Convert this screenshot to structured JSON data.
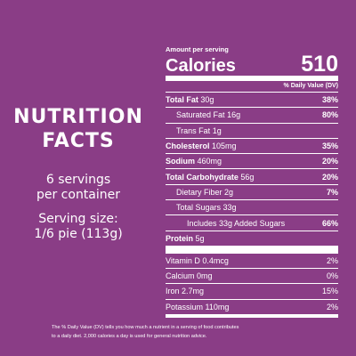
{
  "left": {
    "heading_line1": "NUTRITION",
    "heading_line2": "FACTS",
    "servings_line1": "6 servings",
    "servings_line2": "per container",
    "serving_size_line1": "Serving size:",
    "serving_size_line2": "1/6 pie (113g)"
  },
  "panel": {
    "amount_per_serving": "Amount per serving",
    "calories_label": "Calories",
    "calories_value": "510",
    "dv_header": "% Daily Value (DV)",
    "rows": [
      {
        "name": "Total Fat",
        "amount": "30g",
        "pct": "38%"
      },
      {
        "name": "Saturated Fat",
        "amount": "16g",
        "pct": "80%"
      },
      {
        "name": "Trans Fat",
        "amount": "1g",
        "pct": ""
      },
      {
        "name": "Cholesterol",
        "amount": "105mg",
        "pct": "35%"
      },
      {
        "name": "Sodium",
        "amount": "460mg",
        "pct": "20%"
      },
      {
        "name": "Total Carbohydrate",
        "amount": "56g",
        "pct": "20%"
      },
      {
        "name": "Dietary Fiber",
        "amount": "2g",
        "pct": "7%"
      },
      {
        "name": "Total Sugars",
        "amount": "33g",
        "pct": ""
      },
      {
        "name": "Includes 33g Added Sugars",
        "amount": "",
        "pct": "66%"
      },
      {
        "name": "Protein",
        "amount": "5g",
        "pct": ""
      }
    ],
    "vitamins": [
      {
        "name": "Vitamin D 0.4mcg",
        "pct": "2%"
      },
      {
        "name": "Calcium 0mg",
        "pct": "0%"
      },
      {
        "name": "Iron 2.7mg",
        "pct": "15%"
      },
      {
        "name": "Potassium 110mg",
        "pct": "2%"
      }
    ]
  },
  "footnote": {
    "line1": "The % Daily Value (DV) tells you how much a nutrient in a serving of food contributes",
    "line2": "to a daily diet. 2,000 calories a day is used for general nutrition advice."
  },
  "colors": {
    "background": "#8a3d86",
    "text": "#ffffff"
  }
}
